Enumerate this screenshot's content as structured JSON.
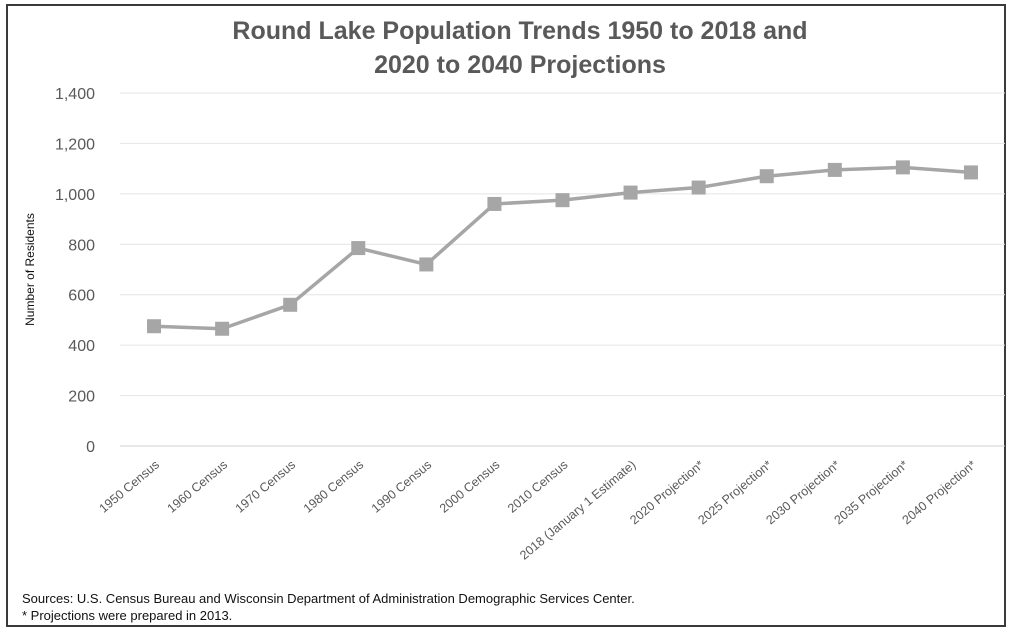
{
  "chart_data": {
    "type": "line",
    "title": [
      "Round Lake Population Trends 1950 to 2018 and",
      "2020 to 2040 Projections"
    ],
    "xlabel": "",
    "ylabel": "Number of Residents",
    "ylim": [
      0,
      1400
    ],
    "yticks": [
      0,
      200,
      400,
      600,
      800,
      1000,
      1200,
      1400
    ],
    "ytick_labels": [
      "0",
      "200",
      "400",
      "600",
      "800",
      "1,000",
      "1,200",
      "1,400"
    ],
    "grid": true,
    "categories": [
      "1950 Census",
      "1960 Census",
      "1970 Census",
      "1980 Census",
      "1990 Census",
      "2000 Census",
      "2010 Census",
      "2018 (January 1 Estimate)",
      "2020 Projection*",
      "2025 Projection*",
      "2030 Projection*",
      "2035 Projection*",
      "2040 Projection*"
    ],
    "series": [
      {
        "values": [
          475,
          465,
          560,
          785,
          720,
          960,
          975,
          1005,
          1025,
          1070,
          1095,
          1105,
          1085
        ],
        "color": "#a6a6a6",
        "marker": "square"
      }
    ]
  },
  "footer": {
    "sources": "Sources: U.S. Census Bureau and Wisconsin Department of Administration Demographic Services Center.",
    "note": "* Projections were prepared in 2013."
  }
}
